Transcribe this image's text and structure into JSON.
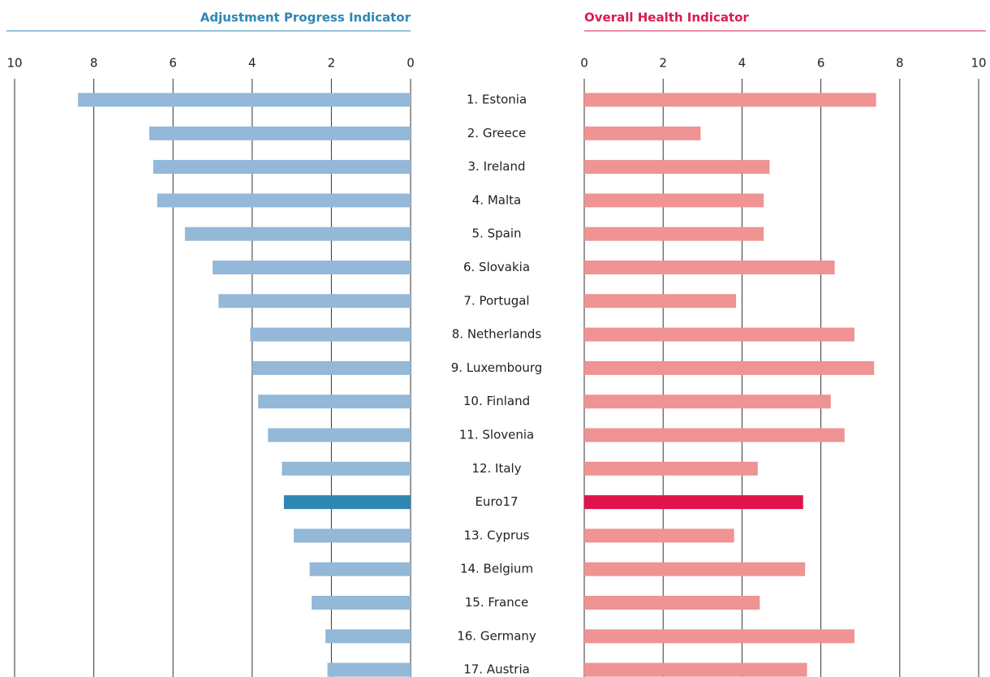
{
  "chart_data": {
    "type": "bar",
    "orientation": "horizontal",
    "categories": [
      "1. Estonia",
      "2. Greece",
      "3. Ireland",
      "4. Malta",
      "5. Spain",
      "6. Slovakia",
      "7. Portugal",
      "8. Netherlands",
      "9. Luxembourg",
      "10. Finland",
      "11. Slovenia",
      "12. Italy",
      "Euro17",
      "13. Cyprus",
      "14. Belgium",
      "15. France",
      "16. Germany",
      "17. Austria"
    ],
    "xlim": [
      0,
      10
    ],
    "xticks": [
      0,
      2,
      4,
      6,
      8,
      10
    ],
    "grid": true,
    "series": [
      {
        "name": "Adjustment Progress Indicator",
        "color": "#2e86b5",
        "reversed": true,
        "colors": [
          "#93b8d8",
          "#93b8d8",
          "#93b8d8",
          "#93b8d8",
          "#93b8d8",
          "#93b8d8",
          "#93b8d8",
          "#93b8d8",
          "#93b8d8",
          "#93b8d8",
          "#93b8d8",
          "#93b8d8",
          "#2f86b3",
          "#93b8d8",
          "#93b8d8",
          "#93b8d8",
          "#93b8d8",
          "#93b8d8"
        ],
        "values": [
          8.4,
          6.6,
          6.5,
          6.4,
          5.7,
          5.0,
          4.85,
          4.05,
          4.0,
          3.85,
          3.6,
          3.25,
          3.2,
          2.95,
          2.55,
          2.5,
          2.15,
          2.1
        ]
      },
      {
        "name": "Overall Health Indicator",
        "color": "#d81b4f",
        "reversed": false,
        "colors": [
          "#ef9393",
          "#ef9393",
          "#ef9393",
          "#ef9393",
          "#ef9393",
          "#ef9393",
          "#ef9393",
          "#ef9393",
          "#ef9393",
          "#ef9393",
          "#ef9393",
          "#ef9393",
          "#e0134d",
          "#ef9393",
          "#ef9393",
          "#ef9393",
          "#ef9393",
          "#ef9393"
        ],
        "values": [
          7.4,
          2.95,
          4.7,
          4.55,
          4.55,
          6.35,
          3.85,
          6.85,
          7.35,
          6.25,
          6.6,
          4.4,
          5.55,
          3.8,
          5.6,
          4.45,
          6.85,
          5.65
        ]
      }
    ]
  }
}
